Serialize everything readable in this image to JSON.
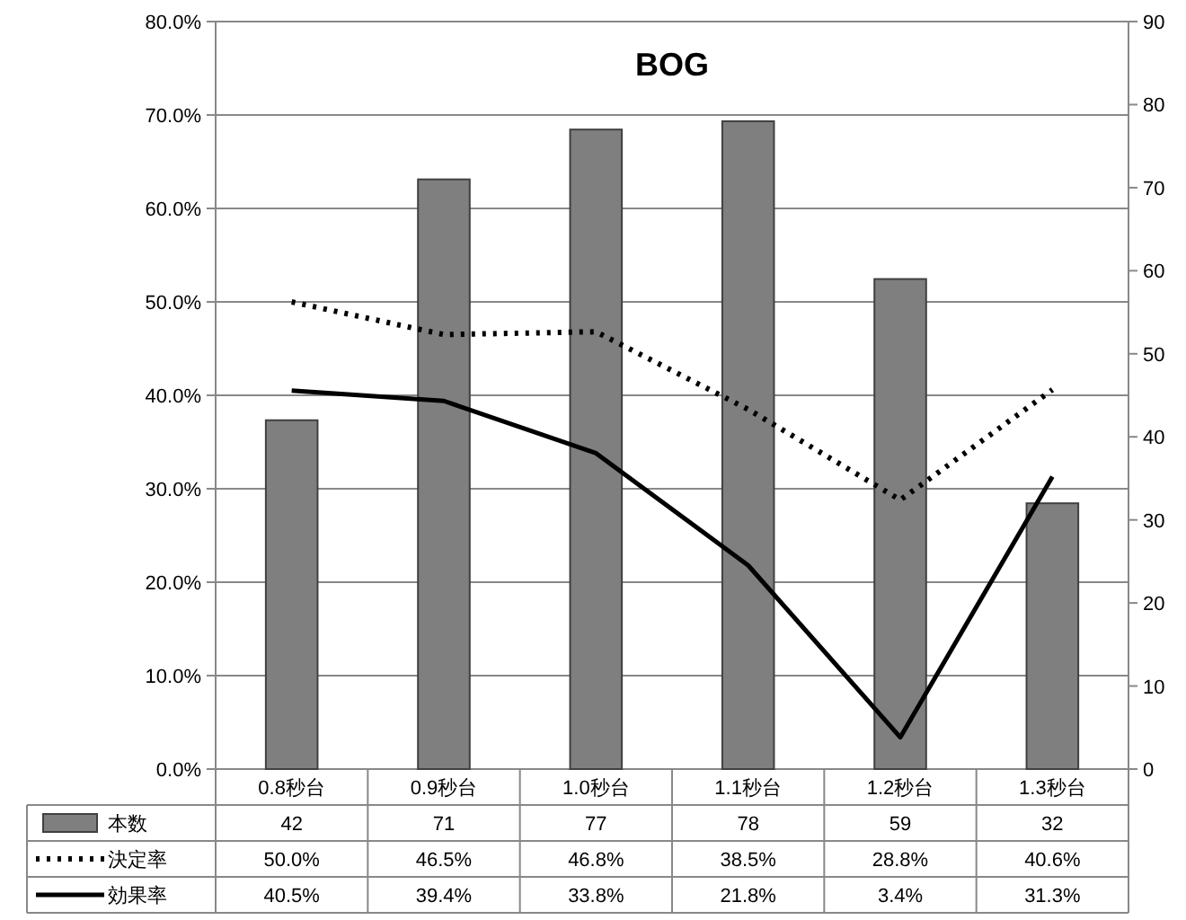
{
  "chart_data": {
    "type": "bar",
    "title": "BOG",
    "categories": [
      "0.8秒台",
      "0.9秒台",
      "1.0秒台",
      "1.1秒台",
      "1.2秒台",
      "1.3秒台"
    ],
    "series": [
      {
        "name": "本数",
        "axis": "y2",
        "color": "#7f7f7f",
        "values": [
          42,
          71,
          77,
          78,
          59,
          32
        ],
        "value_labels": [
          "42",
          "71",
          "77",
          "78",
          "59",
          "32"
        ]
      },
      {
        "name": "決定率",
        "type": "line",
        "line_style": "dotted",
        "color": "#000000",
        "values": [
          50.0,
          46.5,
          46.8,
          38.5,
          28.8,
          40.6
        ],
        "value_labels": [
          "50.0%",
          "46.5%",
          "46.8%",
          "38.5%",
          "28.8%",
          "40.6%"
        ]
      },
      {
        "name": "効果率",
        "type": "line",
        "line_style": "solid",
        "color": "#000000",
        "values": [
          40.5,
          39.4,
          33.8,
          21.8,
          3.4,
          31.3
        ],
        "value_labels": [
          "40.5%",
          "39.4%",
          "33.8%",
          "21.8%",
          "3.4%",
          "31.3%"
        ]
      }
    ],
    "ylim": [
      0,
      80
    ],
    "yticks": [
      {
        "value": 0,
        "label": "0.0%"
      },
      {
        "value": 10,
        "label": "10.0%"
      },
      {
        "value": 20,
        "label": "20.0%"
      },
      {
        "value": 30,
        "label": "30.0%"
      },
      {
        "value": 40,
        "label": "40.0%"
      },
      {
        "value": 50,
        "label": "50.0%"
      },
      {
        "value": 60,
        "label": "60.0%"
      },
      {
        "value": 70,
        "label": "70.0%"
      },
      {
        "value": 80,
        "label": "80.0%"
      }
    ],
    "y2lim": [
      0,
      90
    ],
    "y2ticks": [
      0,
      10,
      20,
      30,
      40,
      50,
      60,
      70,
      80,
      90
    ],
    "grid": "y",
    "legend": "bottom"
  }
}
